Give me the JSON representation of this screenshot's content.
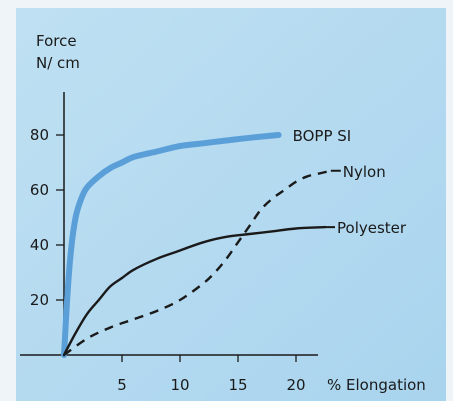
{
  "chart_data": {
    "type": "line",
    "title": "",
    "ylabel_line1": "Force",
    "ylabel_line2": "N/ cm",
    "xlabel": "% Elongation",
    "xlim": [
      0,
      25
    ],
    "ylim": [
      0,
      95
    ],
    "x_ticks": [
      5,
      10,
      15,
      20
    ],
    "y_ticks": [
      20,
      40,
      60,
      80
    ],
    "grid": false,
    "legend": "inline-labels-at-line-ends",
    "series": [
      {
        "name": "BOPP SI",
        "color": "#5b9fd9",
        "style": "solid-thick",
        "x": [
          0,
          0.3,
          0.6,
          1,
          1.5,
          2,
          3,
          4,
          5,
          6,
          8,
          10,
          12,
          14,
          16,
          18.5
        ],
        "y": [
          0,
          22,
          38,
          50,
          57,
          61,
          65,
          68,
          70,
          72,
          74,
          76,
          77,
          78,
          79,
          80
        ]
      },
      {
        "name": "Nylon",
        "color": "#1a1a1a",
        "style": "dashed",
        "x": [
          0,
          2,
          4,
          6,
          8,
          10,
          12,
          13,
          14,
          15,
          16,
          17,
          18,
          19,
          20,
          21,
          22,
          23
        ],
        "y": [
          0,
          6,
          10,
          13,
          16,
          20,
          26,
          30,
          35,
          41,
          47,
          53,
          57,
          60,
          63,
          65,
          66,
          67
        ]
      },
      {
        "name": "Polyester",
        "color": "#1a1a1a",
        "style": "solid",
        "x": [
          0,
          1,
          2,
          3,
          4,
          5,
          6,
          8,
          10,
          12,
          14,
          16,
          18,
          20,
          22.5
        ],
        "y": [
          0,
          8,
          15,
          20,
          25,
          28,
          31,
          35,
          38,
          41,
          43,
          44,
          45,
          46,
          46.5
        ]
      }
    ]
  }
}
